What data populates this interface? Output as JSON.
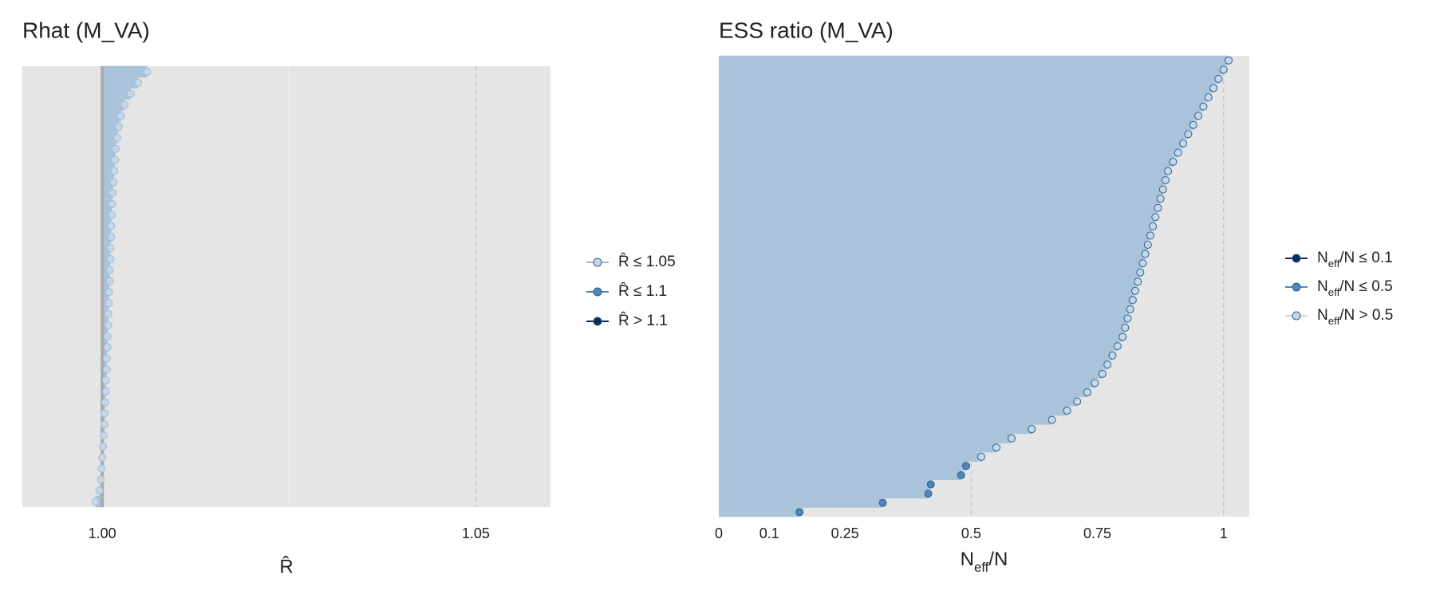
{
  "chart_data": [
    {
      "type": "rhat",
      "title": "Rhat (M_VA)",
      "xlabel": "R̂",
      "xlim": [
        0.9893,
        1.06
      ],
      "xticks": [
        {
          "value": 1,
          "label": "1.00"
        },
        1.05
      ],
      "minor_xticks": [
        1.025
      ],
      "ref_line": 1,
      "vlines": [
        1.05,
        1.1
      ],
      "segment_color": "#a9c3da",
      "values": [
        0.9991,
        0.9996,
        0.9998,
        0.9999,
        1.0,
        1.0001,
        1.0002,
        1.0003,
        1.0003,
        1.0004,
        1.0005,
        1.0005,
        1.0006,
        1.0006,
        1.0007,
        1.0007,
        1.0008,
        1.0008,
        1.0009,
        1.0009,
        1.001,
        1.001,
        1.0011,
        1.0011,
        1.0012,
        1.0012,
        1.0013,
        1.0013,
        1.0014,
        1.0015,
        1.0016,
        1.0017,
        1.0018,
        1.002,
        1.0022,
        1.0025,
        1.003,
        1.0038,
        1.0048,
        1.006
      ],
      "legend": [
        {
          "label": "R̂ ≤ 1.05",
          "color": "#c6d8e8"
        },
        {
          "label": "R̂ ≤ 1.1",
          "color": "#4f86b5"
        },
        {
          "label": "R̂ > 1.1",
          "color": "#0d2a55"
        }
      ]
    },
    {
      "type": "ess",
      "title": "ESS ratio (M_VA)",
      "xlabel": [
        "N",
        "eff",
        "/N"
      ],
      "xlim": [
        0,
        1.051
      ],
      "xticks": [
        0,
        0.1,
        0.25,
        0.5,
        0.75,
        1
      ],
      "vlines": [
        0.1,
        0.5,
        1
      ],
      "segment_color": "#a9c3da",
      "values": [
        0.16,
        0.325,
        0.415,
        0.42,
        0.48,
        0.49,
        0.52,
        0.55,
        0.58,
        0.62,
        0.66,
        0.69,
        0.71,
        0.73,
        0.745,
        0.76,
        0.77,
        0.78,
        0.79,
        0.8,
        0.805,
        0.81,
        0.815,
        0.82,
        0.825,
        0.83,
        0.835,
        0.84,
        0.845,
        0.85,
        0.855,
        0.86,
        0.865,
        0.87,
        0.875,
        0.88,
        0.885,
        0.89,
        0.9,
        0.91,
        0.92,
        0.93,
        0.94,
        0.95,
        0.96,
        0.97,
        0.98,
        0.99,
        1.0,
        1.01
      ],
      "legend": [
        {
          "label": [
            "N",
            "eff",
            "/N ≤ 0.1"
          ],
          "color": "#0d2a55"
        },
        {
          "label": [
            "N",
            "eff",
            "/N ≤ 0.5"
          ],
          "color": "#4f86b5"
        },
        {
          "label": [
            "N",
            "eff",
            "/N > 0.5"
          ],
          "color": "#c6d8e8"
        }
      ]
    }
  ]
}
